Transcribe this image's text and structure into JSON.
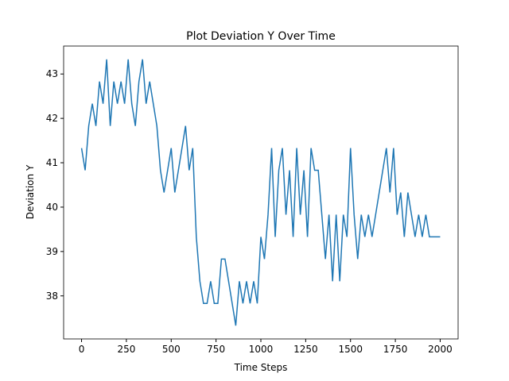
{
  "chart_data": {
    "type": "line",
    "title": "Plot Deviation Y Over Time",
    "xlabel": "Time Steps",
    "ylabel": "Deviation Y",
    "x": [
      0,
      20,
      40,
      60,
      80,
      100,
      120,
      140,
      160,
      180,
      200,
      220,
      240,
      260,
      280,
      300,
      320,
      340,
      360,
      380,
      400,
      420,
      440,
      460,
      480,
      500,
      520,
      540,
      560,
      580,
      600,
      620,
      640,
      660,
      680,
      700,
      720,
      740,
      760,
      780,
      800,
      820,
      840,
      860,
      880,
      900,
      920,
      940,
      960,
      980,
      1000,
      1020,
      1040,
      1060,
      1080,
      1100,
      1120,
      1140,
      1160,
      1180,
      1200,
      1220,
      1240,
      1260,
      1280,
      1300,
      1320,
      1340,
      1360,
      1380,
      1400,
      1420,
      1440,
      1460,
      1480,
      1500,
      1520,
      1540,
      1560,
      1580,
      1600,
      1620,
      1640,
      1660,
      1680,
      1700,
      1720,
      1740,
      1760,
      1780,
      1800,
      1820,
      1840,
      1860,
      1880,
      1900,
      1920,
      1940,
      1960,
      1980,
      2000
    ],
    "series": [
      {
        "name": "Deviation Y",
        "color": "#1f77b4",
        "values": [
          41.33,
          40.83,
          41.83,
          42.33,
          41.83,
          42.83,
          42.33,
          43.33,
          41.83,
          42.83,
          42.33,
          42.83,
          42.33,
          43.33,
          42.33,
          41.83,
          42.83,
          43.33,
          42.33,
          42.83,
          42.33,
          41.83,
          40.83,
          40.33,
          40.83,
          41.33,
          40.33,
          40.83,
          41.33,
          41.83,
          40.83,
          41.33,
          39.33,
          38.33,
          37.83,
          37.83,
          38.33,
          37.83,
          37.83,
          38.83,
          38.83,
          38.33,
          37.83,
          37.33,
          38.33,
          37.83,
          38.33,
          37.83,
          38.33,
          37.83,
          39.33,
          38.83,
          39.83,
          41.33,
          39.33,
          40.83,
          41.33,
          39.83,
          40.83,
          39.33,
          41.33,
          39.83,
          40.83,
          39.33,
          41.33,
          40.83,
          40.83,
          39.83,
          38.83,
          39.83,
          38.33,
          39.83,
          38.33,
          39.83,
          39.33,
          41.33,
          39.83,
          38.83,
          39.83,
          39.33,
          39.83,
          39.33,
          39.83,
          40.33,
          40.83,
          41.33,
          40.33,
          41.33,
          39.83,
          40.33,
          39.33,
          40.33,
          39.83,
          39.33,
          39.83,
          39.33,
          39.83,
          39.33,
          39.33,
          39.33,
          39.33
        ]
      }
    ],
    "xlim": [
      -100,
      2100
    ],
    "ylim": [
      37.03,
      43.63
    ],
    "xticks": [
      0,
      250,
      500,
      750,
      1000,
      1250,
      1500,
      1750,
      2000
    ],
    "yticks": [
      38,
      39,
      40,
      41,
      42,
      43
    ]
  }
}
